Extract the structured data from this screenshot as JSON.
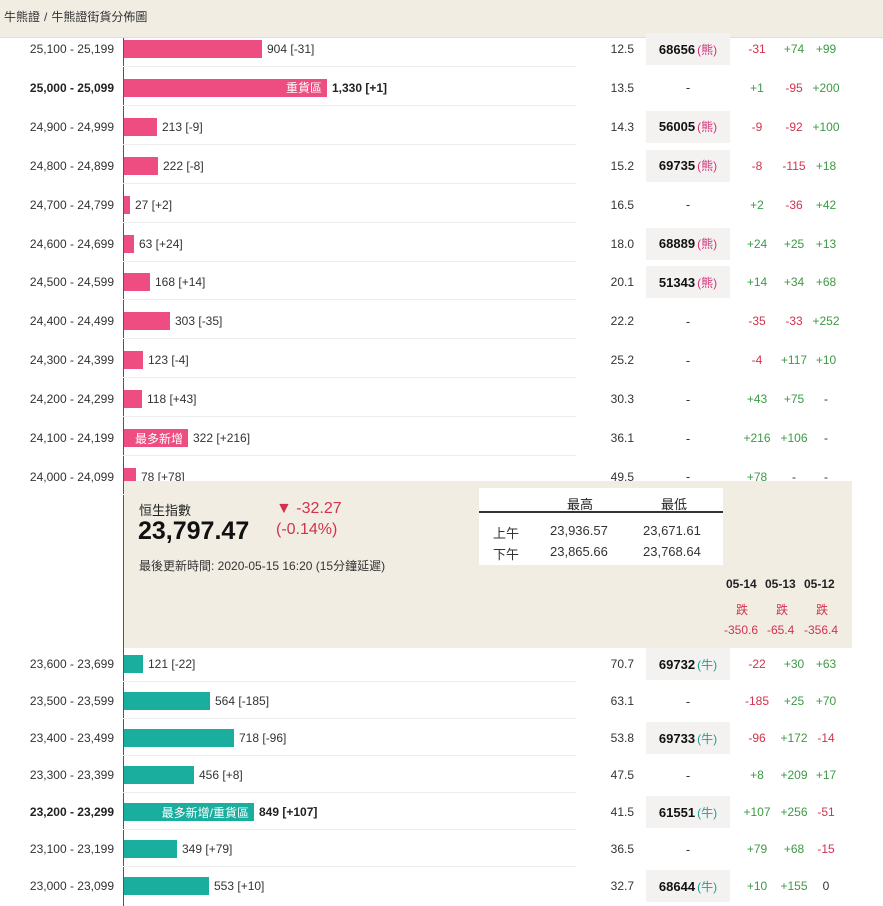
{
  "breadcrumb": {
    "part1": "牛熊證",
    "sep": "/",
    "part2": "牛熊證街貨分佈圖"
  },
  "bear_rows": [
    {
      "range": "25,100 - 25,199",
      "label_in": "",
      "label_out": "904 [-31]",
      "pct": "12.5",
      "code": "68656",
      "tag": "(熊)",
      "d1": "-31",
      "d2": "+74",
      "d3": "+99",
      "bold": false,
      "amount": 904
    },
    {
      "range": "25,000 - 25,099",
      "label_in": "重貨區",
      "label_out": "1,330 [+1]",
      "pct": "13.5",
      "code": "-",
      "tag": "",
      "d1": "+1",
      "d2": "-95",
      "d3": "+200",
      "bold": true,
      "amount": 1330
    },
    {
      "range": "24,900 - 24,999",
      "label_in": "",
      "label_out": "213 [-9]",
      "pct": "14.3",
      "code": "56005",
      "tag": "(熊)",
      "d1": "-9",
      "d2": "-92",
      "d3": "+100",
      "bold": false,
      "amount": 213
    },
    {
      "range": "24,800 - 24,899",
      "label_in": "",
      "label_out": "222 [-8]",
      "pct": "15.2",
      "code": "69735",
      "tag": "(熊)",
      "d1": "-8",
      "d2": "-115",
      "d3": "+18",
      "bold": false,
      "amount": 222
    },
    {
      "range": "24,700 - 24,799",
      "label_in": "",
      "label_out": "27 [+2]",
      "pct": "16.5",
      "code": "-",
      "tag": "",
      "d1": "+2",
      "d2": "-36",
      "d3": "+42",
      "bold": false,
      "amount": 27
    },
    {
      "range": "24,600 - 24,699",
      "label_in": "",
      "label_out": "63 [+24]",
      "pct": "18.0",
      "code": "68889",
      "tag": "(熊)",
      "d1": "+24",
      "d2": "+25",
      "d3": "+13",
      "bold": false,
      "amount": 63
    },
    {
      "range": "24,500 - 24,599",
      "label_in": "",
      "label_out": "168 [+14]",
      "pct": "20.1",
      "code": "51343",
      "tag": "(熊)",
      "d1": "+14",
      "d2": "+34",
      "d3": "+68",
      "bold": false,
      "amount": 168
    },
    {
      "range": "24,400 - 24,499",
      "label_in": "",
      "label_out": "303 [-35]",
      "pct": "22.2",
      "code": "-",
      "tag": "",
      "d1": "-35",
      "d2": "-33",
      "d3": "+252",
      "bold": false,
      "amount": 303
    },
    {
      "range": "24,300 - 24,399",
      "label_in": "",
      "label_out": "123 [-4]",
      "pct": "25.2",
      "code": "-",
      "tag": "",
      "d1": "-4",
      "d2": "+117",
      "d3": "+10",
      "bold": false,
      "amount": 123
    },
    {
      "range": "24,200 - 24,299",
      "label_in": "",
      "label_out": "118 [+43]",
      "pct": "30.3",
      "code": "-",
      "tag": "",
      "d1": "+43",
      "d2": "+75",
      "d3": "-",
      "bold": false,
      "amount": 118
    },
    {
      "range": "24,100 - 24,199",
      "label_in": "最多新增",
      "label_out": "322 [+216]",
      "pct": "36.1",
      "code": "-",
      "tag": "",
      "d1": "+216",
      "d2": "+106",
      "d3": "-",
      "bold": false,
      "amount": 322
    },
    {
      "range": "24,000 - 24,099",
      "label_in": "",
      "label_out": "78 [+78]",
      "pct": "49.5",
      "code": "-",
      "tag": "",
      "d1": "+78",
      "d2": "-",
      "d3": "-",
      "bold": false,
      "amount": 78
    }
  ],
  "index": {
    "title": "恒生指數",
    "value": "23,797.47",
    "change": "▼ -32.27",
    "change_pct": "(-0.14%)",
    "updated": "最後更新時間: 2020-05-15 16:20 (15分鐘延遲)",
    "hl_header_high": "最高",
    "hl_header_low": "最低",
    "am_label": "上午",
    "am_high": "23,936.57",
    "am_low": "23,671.61",
    "pm_label": "下午",
    "pm_high": "23,865.66",
    "pm_low": "23,768.64",
    "history": [
      {
        "date": "05-14",
        "word": "跌",
        "value": "-350.6"
      },
      {
        "date": "05-13",
        "word": "跌",
        "value": "-65.4"
      },
      {
        "date": "05-12",
        "word": "跌",
        "value": "-356.4"
      }
    ]
  },
  "bull_rows": [
    {
      "range": "23,600 - 23,699",
      "label_in": "",
      "label_out": "121 [-22]",
      "pct": "70.7",
      "code": "69732",
      "tag": "(牛)",
      "d1": "-22",
      "d2": "+30",
      "d3": "+63",
      "bold": false,
      "amount": 121
    },
    {
      "range": "23,500 - 23,599",
      "label_in": "",
      "label_out": "564 [-185]",
      "pct": "63.1",
      "code": "-",
      "tag": "",
      "d1": "-185",
      "d2": "+25",
      "d3": "+70",
      "bold": false,
      "amount": 564
    },
    {
      "range": "23,400 - 23,499",
      "label_in": "",
      "label_out": "718 [-96]",
      "pct": "53.8",
      "code": "69733",
      "tag": "(牛)",
      "d1": "-96",
      "d2": "+172",
      "d3": "-14",
      "bold": false,
      "amount": 718
    },
    {
      "range": "23,300 - 23,399",
      "label_in": "",
      "label_out": "456 [+8]",
      "pct": "47.5",
      "code": "-",
      "tag": "",
      "d1": "+8",
      "d2": "+209",
      "d3": "+17",
      "bold": false,
      "amount": 456
    },
    {
      "range": "23,200 - 23,299",
      "label_in": "最多新增/重貨區",
      "label_out": "849 [+107]",
      "pct": "41.5",
      "code": "61551",
      "tag": "(牛)",
      "d1": "+107",
      "d2": "+256",
      "d3": "-51",
      "bold": true,
      "amount": 849
    },
    {
      "range": "23,100 - 23,199",
      "label_in": "",
      "label_out": "349 [+79]",
      "pct": "36.5",
      "code": "-",
      "tag": "",
      "d1": "+79",
      "d2": "+68",
      "d3": "-15",
      "bold": false,
      "amount": 349
    },
    {
      "range": "23,000 - 23,099",
      "label_in": "",
      "label_out": "553 [+10]",
      "pct": "32.7",
      "code": "68644",
      "tag": "(牛)",
      "d1": "+10",
      "d2": "+155",
      "d3": "0",
      "bold": false,
      "amount": 553
    }
  ]
}
